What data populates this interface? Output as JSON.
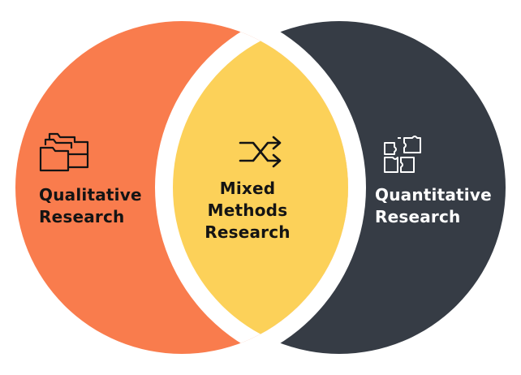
{
  "circles": [
    {
      "id": "qualitative",
      "label_lines": [
        "Qualitative",
        "Research"
      ],
      "color": "#f97c4d",
      "text_color": "#141414",
      "icon": "folders-icon"
    },
    {
      "id": "mixed",
      "label_lines": [
        "Mixed",
        "Methods",
        "Research"
      ],
      "color": "#fcd159",
      "text_color": "#141414",
      "icon": "shuffle-arrows-icon"
    },
    {
      "id": "quantitative",
      "label_lines": [
        "Quantitative",
        "Research"
      ],
      "color": "#363c45",
      "text_color": "#ffffff",
      "icon": "puzzle-pieces-icon"
    }
  ]
}
